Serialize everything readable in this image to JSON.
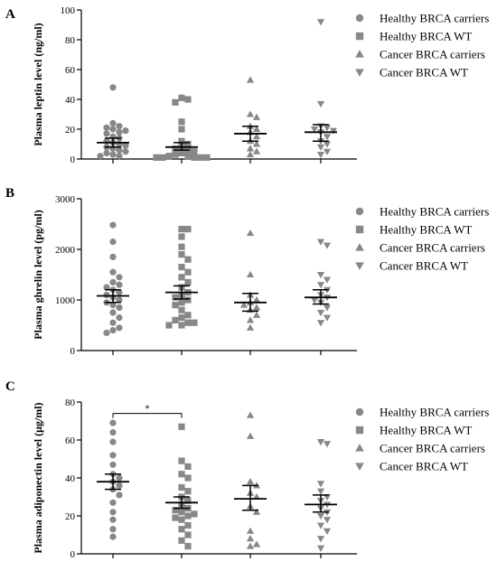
{
  "colors": {
    "points": "#888888",
    "axis": "#000000",
    "bars": "#000000"
  },
  "legend": [
    {
      "label": "Healthy BRCA carriers",
      "shape": "circle"
    },
    {
      "label": "Healthy BRCA WT",
      "shape": "square"
    },
    {
      "label": "Cancer BRCA carriers",
      "shape": "triangle-up"
    },
    {
      "label": "Cancer BRCA WT",
      "shape": "triangle-down"
    }
  ],
  "chart_data": [
    {
      "panel": "A",
      "type": "scatter",
      "ylabel": "Plasma leptin level (ng/ml)",
      "ylim": [
        0,
        100
      ],
      "yticks": [
        0,
        20,
        40,
        60,
        80,
        100
      ],
      "groups": [
        {
          "series": "Healthy BRCA carriers",
          "mean": 11,
          "sem_low": 8,
          "sem_high": 14,
          "values": [
            48,
            24,
            22,
            21,
            20,
            19,
            18,
            17,
            15,
            14,
            12,
            11,
            10,
            9,
            8,
            7,
            6,
            5,
            4,
            3,
            2,
            2
          ]
        },
        {
          "series": "Healthy BRCA WT",
          "mean": 8,
          "sem_low": 6,
          "sem_high": 11,
          "values": [
            41,
            40,
            38,
            25,
            20,
            12,
            10,
            8,
            7,
            6,
            5,
            4,
            3,
            2,
            2,
            1,
            1,
            1,
            1,
            1
          ]
        },
        {
          "series": "Cancer BRCA carriers",
          "mean": 17,
          "sem_low": 12,
          "sem_high": 22,
          "values": [
            53,
            30,
            28,
            22,
            20,
            18,
            15,
            12,
            10,
            7,
            5,
            3
          ]
        },
        {
          "series": "Cancer BRCA WT",
          "mean": 18,
          "sem_low": 12,
          "sem_high": 23,
          "values": [
            92,
            37,
            22,
            21,
            20,
            19,
            18,
            15,
            12,
            10,
            8,
            5,
            3
          ]
        }
      ],
      "significance": []
    },
    {
      "panel": "B",
      "type": "scatter",
      "ylabel": "Plasma ghrelin level (pg/ml)",
      "ylim": [
        0,
        3000
      ],
      "yticks": [
        0,
        1000,
        2000,
        3000
      ],
      "groups": [
        {
          "series": "Healthy BRCA carriers",
          "mean": 1080,
          "sem_low": 950,
          "sem_high": 1200,
          "values": [
            2480,
            2150,
            1850,
            1550,
            1450,
            1350,
            1300,
            1250,
            1200,
            1150,
            1100,
            1050,
            1000,
            950,
            900,
            850,
            750,
            650,
            550,
            450,
            400,
            350
          ]
        },
        {
          "series": "Healthy BRCA WT",
          "mean": 1150,
          "sem_low": 1020,
          "sem_high": 1280,
          "values": [
            2400,
            2400,
            2250,
            2050,
            1900,
            1800,
            1650,
            1550,
            1450,
            1350,
            1250,
            1150,
            1100,
            1050,
            1000,
            950,
            900,
            800,
            700,
            650,
            600,
            550,
            550,
            500,
            500
          ]
        },
        {
          "series": "Cancer BRCA carriers",
          "mean": 950,
          "sem_low": 780,
          "sem_high": 1130,
          "values": [
            2320,
            1500,
            1100,
            1000,
            950,
            900,
            850,
            800,
            700,
            600,
            450
          ]
        },
        {
          "series": "Cancer BRCA WT",
          "mean": 1050,
          "sem_low": 920,
          "sem_high": 1200,
          "values": [
            2150,
            2080,
            1500,
            1400,
            1300,
            1200,
            1100,
            1050,
            1000,
            950,
            850,
            750,
            650,
            550
          ]
        }
      ],
      "significance": []
    },
    {
      "panel": "C",
      "type": "scatter",
      "ylabel": "Plasma adiponectin level (μg/ml)",
      "ylim": [
        0,
        80
      ],
      "yticks": [
        0,
        20,
        40,
        60,
        80
      ],
      "groups": [
        {
          "series": "Healthy BRCA carriers",
          "mean": 38,
          "sem_low": 34,
          "sem_high": 42,
          "values": [
            69,
            64,
            59,
            52,
            47,
            42,
            40,
            38,
            36,
            34,
            31,
            27,
            22,
            18,
            13,
            9
          ]
        },
        {
          "series": "Healthy BRCA WT",
          "mean": 27,
          "sem_low": 24,
          "sem_high": 30,
          "values": [
            67,
            49,
            46,
            42,
            40,
            35,
            33,
            30,
            28,
            26,
            24,
            23,
            22,
            21,
            20,
            19,
            18,
            15,
            13,
            10,
            7,
            4
          ]
        },
        {
          "series": "Cancer BRCA carriers",
          "mean": 29,
          "sem_low": 23,
          "sem_high": 36,
          "values": [
            73,
            62,
            38,
            36,
            32,
            30,
            25,
            22,
            12,
            8,
            5,
            4
          ]
        },
        {
          "series": "Cancer BRCA WT",
          "mean": 26,
          "sem_low": 22,
          "sem_high": 31,
          "values": [
            59,
            58,
            37,
            33,
            30,
            28,
            26,
            24,
            22,
            20,
            18,
            15,
            12,
            8,
            3
          ]
        }
      ],
      "significance": [
        {
          "from": 0,
          "to": 1,
          "y": 74,
          "label": "*"
        }
      ]
    }
  ]
}
